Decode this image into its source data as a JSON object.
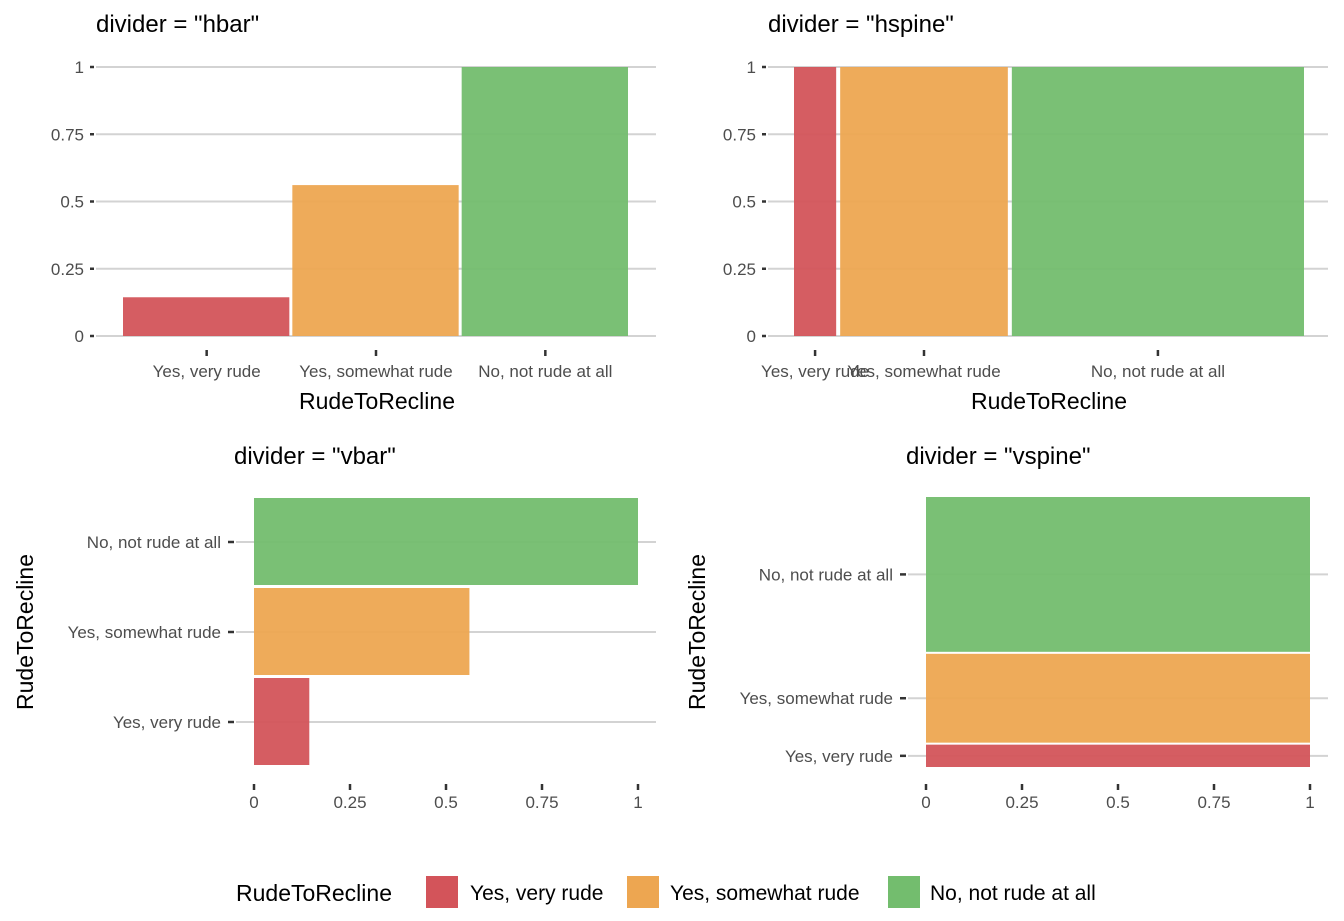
{
  "legend": {
    "title": "RudeToRecline",
    "entries": [
      "Yes, very rude",
      "Yes, somewhat rude",
      "No, not rude at all"
    ],
    "colors": [
      "#d3545a",
      "#eda651",
      "#73bd6e"
    ]
  },
  "chart_data": [
    {
      "type": "bar",
      "title": "divider = \"hbar\"",
      "xlabel": "RudeToRecline",
      "ylabel": "",
      "categories": [
        "Yes, very rude",
        "Yes, somewhat rude",
        "No, not rude at all"
      ],
      "values": [
        0.144,
        0.561,
        1.0
      ],
      "ylim": [
        0,
        1
      ],
      "yticks": [
        "0",
        "0.25",
        "0.5",
        "0.75",
        "1"
      ],
      "orientation": "vertical-bars",
      "grid": true
    },
    {
      "type": "bar",
      "title": "divider = \"hspine\"",
      "xlabel": "RudeToRecline",
      "ylabel": "",
      "categories": [
        "Yes, very rude",
        "Yes, somewhat rude",
        "No, not rude at all"
      ],
      "widths": [
        0.084,
        0.334,
        0.582
      ],
      "values": [
        1,
        1,
        1
      ],
      "ylim": [
        0,
        1
      ],
      "yticks": [
        "0",
        "0.25",
        "0.5",
        "0.75",
        "1"
      ],
      "orientation": "vertical-spine",
      "grid": true
    },
    {
      "type": "bar",
      "title": "divider = \"vbar\"",
      "xlabel": "",
      "ylabel": "RudeToRecline",
      "categories": [
        "Yes, very rude",
        "Yes, somewhat rude",
        "No, not rude at all"
      ],
      "values": [
        0.144,
        0.561,
        1.0
      ],
      "xlim": [
        0,
        1
      ],
      "xticks": [
        "0",
        "0.25",
        "0.5",
        "0.75",
        "1"
      ],
      "orientation": "horizontal-bars",
      "grid": true
    },
    {
      "type": "bar",
      "title": "divider = \"vspine\"",
      "xlabel": "",
      "ylabel": "RudeToRecline",
      "categories": [
        "Yes, very rude",
        "Yes, somewhat rude",
        "No, not rude at all"
      ],
      "heights": [
        0.084,
        0.334,
        0.582
      ],
      "values": [
        1,
        1,
        1
      ],
      "xlim": [
        0,
        1
      ],
      "xticks": [
        "0",
        "0.25",
        "0.5",
        "0.75",
        "1"
      ],
      "orientation": "horizontal-spine",
      "grid": true
    }
  ]
}
